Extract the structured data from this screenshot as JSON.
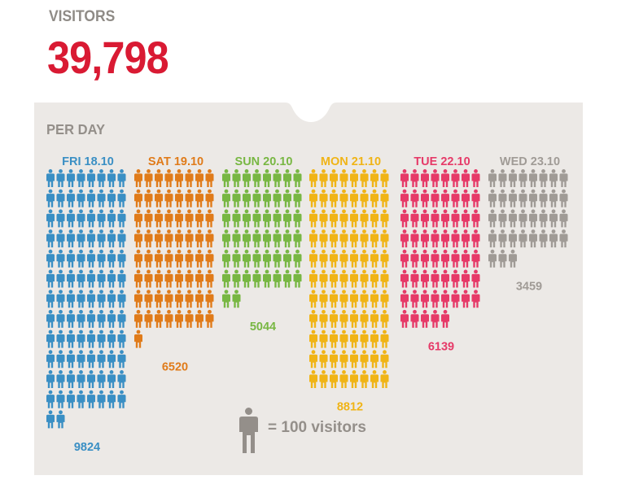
{
  "header": {
    "label": "VISITORS",
    "total": "39,798"
  },
  "panel": {
    "title": "PER DAY"
  },
  "legend": {
    "text": "= 100 visitors",
    "icon": "person-icon"
  },
  "colors": {
    "total": "#d91a33",
    "panel": "#ece9e6",
    "muted": "#948f8a"
  },
  "chart_data": {
    "type": "pictogram",
    "title": "PER DAY",
    "unit_per_icon": 100,
    "categories": [
      "FRI 18.10",
      "SAT 19.10",
      "SUN 20.10",
      "MON 21.10",
      "TUE 22.10",
      "WED 23.10"
    ],
    "values": [
      9824,
      6520,
      5044,
      8812,
      6139,
      3459
    ],
    "value_labels": [
      "9824",
      "6520",
      "5044",
      "8812",
      "6139",
      "3459"
    ],
    "colors": [
      "#3a8fc4",
      "#e07b1a",
      "#78b743",
      "#f0b416",
      "#e63a68",
      "#a09b96"
    ],
    "icons_per_row": 8
  }
}
